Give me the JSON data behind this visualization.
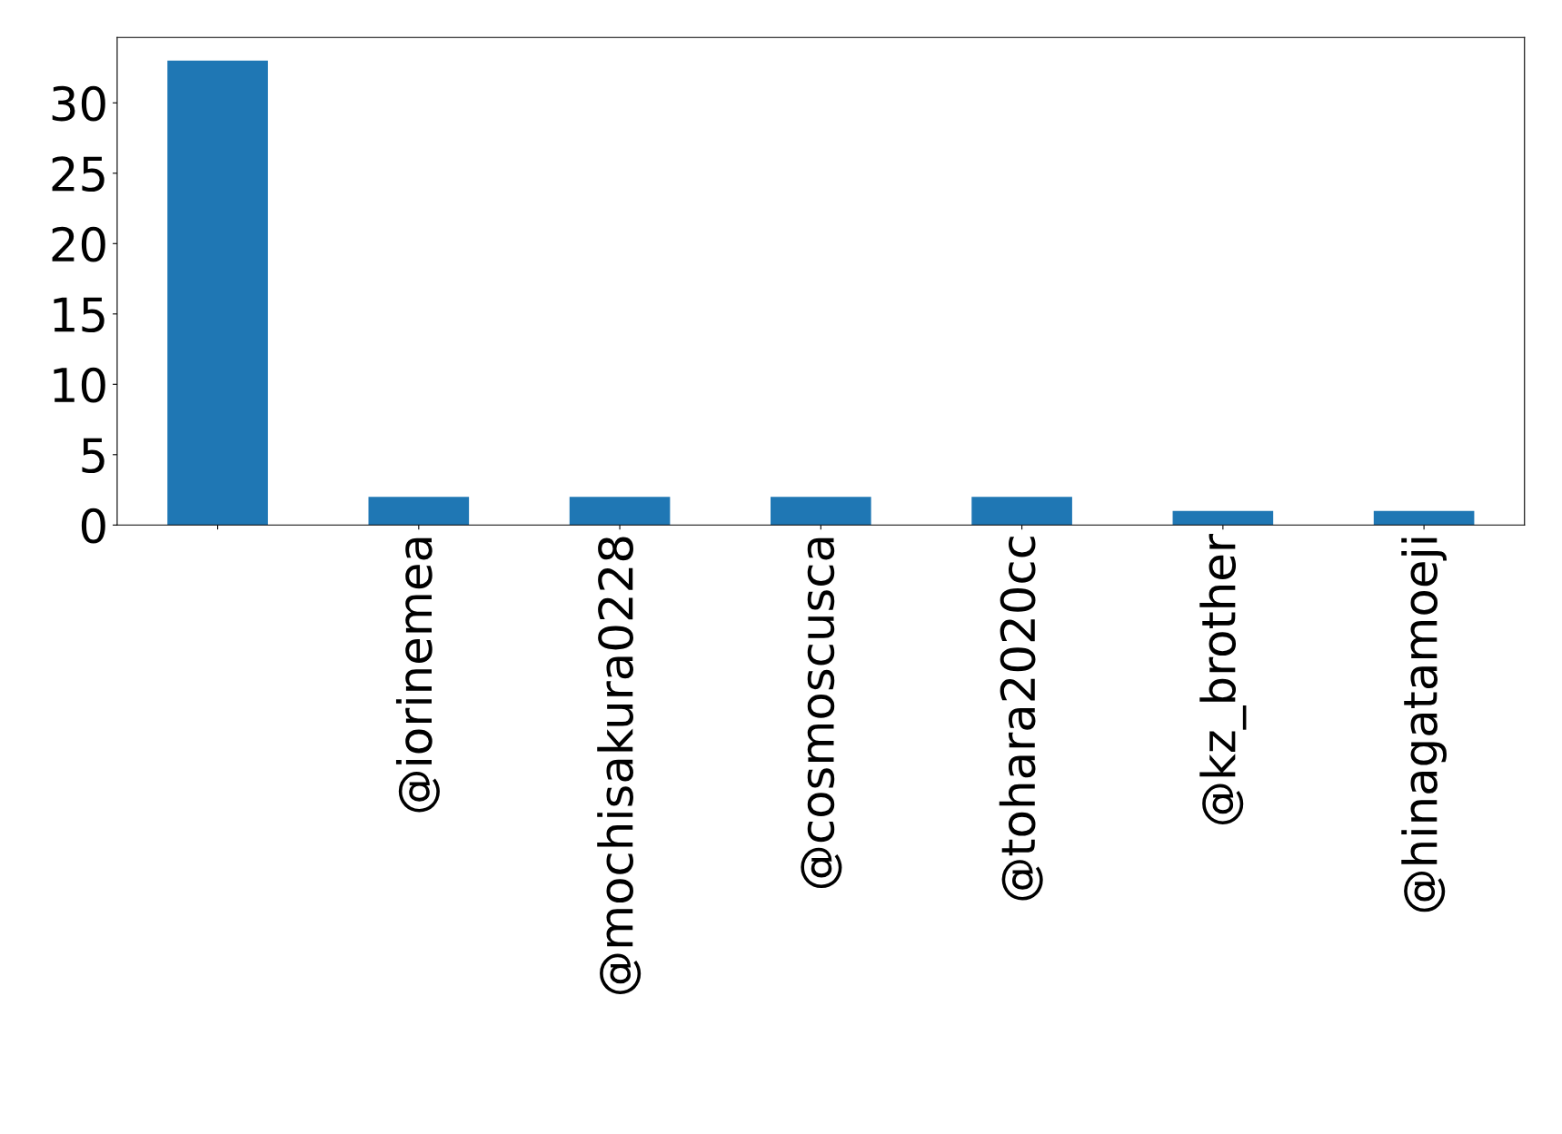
{
  "chart_data": {
    "type": "bar",
    "categories": [
      null,
      "@iorinemea",
      "@mochisakura0228",
      "@cosmoscusca",
      "@tohara2020cc",
      "@kz_brother",
      "@hinagatamoeji"
    ],
    "values": [
      33,
      2,
      2,
      2,
      2,
      1,
      1
    ],
    "color": "#1f77b4",
    "ylim": [
      0,
      34.65
    ],
    "yticks": [
      0,
      5,
      10,
      15,
      20,
      25,
      30
    ],
    "grid": false,
    "legend": false
  }
}
